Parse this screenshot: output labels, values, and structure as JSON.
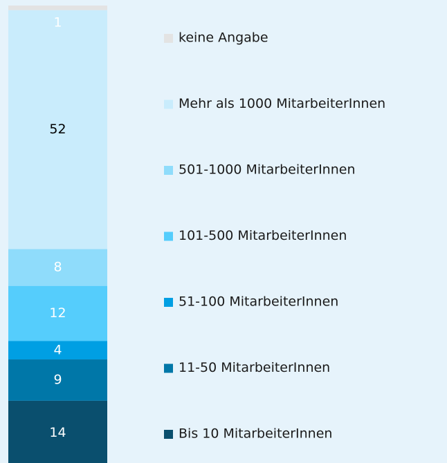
{
  "chart_data": {
    "type": "stacked_bar",
    "series": [
      {
        "name": "Bis 10 MitarbeiterInnen",
        "color": "#0a4f6e",
        "label_color": "#ffffff",
        "values": [
          14
        ]
      },
      {
        "name": "11-50 MitarbeiterInnen",
        "color": "#0077a8",
        "label_color": "#ffffff",
        "values": [
          9
        ]
      },
      {
        "name": "51-100 MitarbeiterInnen",
        "color": "#009fe3",
        "label_color": "#ffffff",
        "values": [
          4
        ]
      },
      {
        "name": "101-500 MitarbeiterInnen",
        "color": "#55cdfc",
        "label_color": "#ffffff",
        "values": [
          12
        ]
      },
      {
        "name": "501-1000 MitarbeiterInnen",
        "color": "#8fdcfb",
        "label_color": "#ffffff",
        "values": [
          8
        ]
      },
      {
        "name": "Mehr als 1000 MitarbeiterInnen",
        "color": "#c9ecfc",
        "label_color": "#000000",
        "values": [
          52
        ]
      },
      {
        "name": "keine Angabe",
        "color": "#e3e3e3",
        "label_color": "#ffffff",
        "values": [
          1
        ]
      }
    ],
    "ylim": [
      0,
      100
    ]
  }
}
